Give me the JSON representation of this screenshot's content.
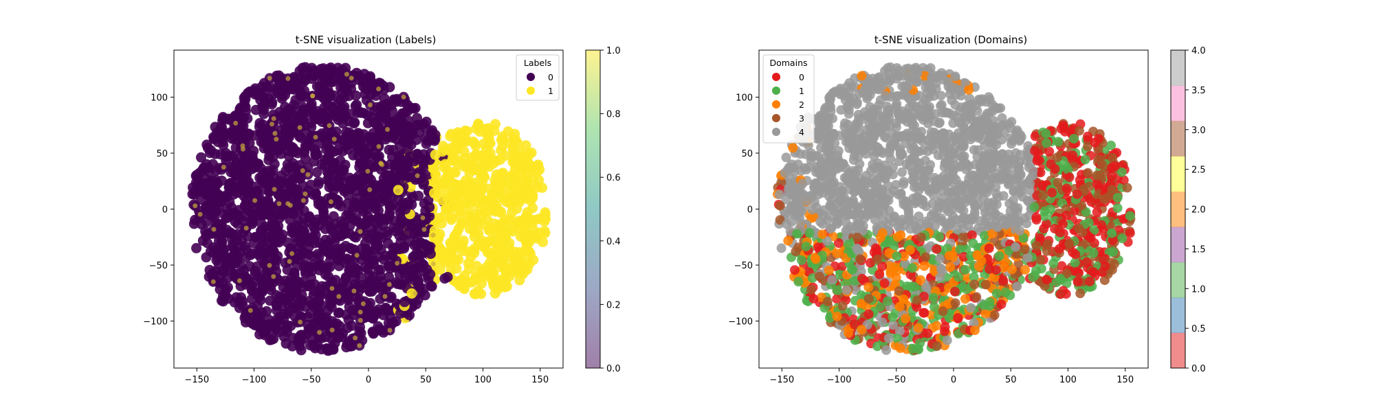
{
  "chart_data": [
    {
      "type": "scatter",
      "title": "t-SNE visualization (Labels)",
      "xlabel": "",
      "ylabel": "",
      "xlim": [
        -170,
        170
      ],
      "ylim": [
        -142,
        142
      ],
      "xticks": [
        -150,
        -100,
        -50,
        0,
        50,
        100,
        150
      ],
      "yticks": [
        -100,
        -50,
        0,
        50,
        100
      ],
      "legend": {
        "title": "Labels",
        "placement": "top-right",
        "entries": [
          {
            "label": "0",
            "color": "#440154"
          },
          {
            "label": "1",
            "color": "#fde725"
          }
        ]
      },
      "colorbar": {
        "colormap": "viridis",
        "alpha": 0.5,
        "range": [
          0.0,
          1.0
        ],
        "ticks": [
          "0.0",
          "0.2",
          "0.4",
          "0.6",
          "0.8",
          "1.0"
        ]
      },
      "series": [
        {
          "name": "0",
          "color": "#440154",
          "region": {
            "cx": -62,
            "cy": 0,
            "rx": 92,
            "ry": 125
          }
        },
        {
          "name": "1",
          "color": "#fde725",
          "region": {
            "cx": 100,
            "cy": 0,
            "rx": 55,
            "ry": 75
          }
        }
      ]
    },
    {
      "type": "scatter",
      "title": "t-SNE visualization (Domains)",
      "xlabel": "",
      "ylabel": "",
      "xlim": [
        -170,
        170
      ],
      "ylim": [
        -142,
        142
      ],
      "xticks": [
        -150,
        -100,
        -50,
        0,
        50,
        100,
        150
      ],
      "yticks": [
        -100,
        -50,
        0,
        50,
        100
      ],
      "legend": {
        "title": "Domains",
        "placement": "top-left",
        "entries": [
          {
            "label": "0",
            "color": "#e41a1c"
          },
          {
            "label": "1",
            "color": "#4daf4a"
          },
          {
            "label": "2",
            "color": "#ff7f00"
          },
          {
            "label": "3",
            "color": "#a65628"
          },
          {
            "label": "4",
            "color": "#999999"
          }
        ]
      },
      "colorbar": {
        "colormap": "Set1",
        "alpha": 0.5,
        "range": [
          0.0,
          4.0
        ],
        "ticks": [
          "0.0",
          "0.5",
          "1.0",
          "1.5",
          "2.0",
          "2.5",
          "3.0",
          "3.5",
          "4.0"
        ],
        "bands": [
          "#e41a1c",
          "#377eb8",
          "#4daf4a",
          "#984ea3",
          "#ff7f00",
          "#ffff33",
          "#a65628",
          "#f781bf",
          "#999999"
        ]
      },
      "series": [
        {
          "name": "4",
          "color": "#999999",
          "region": "upper-left and center"
        },
        {
          "name": "0",
          "color": "#e41a1c",
          "region": "right and lower"
        },
        {
          "name": "1",
          "color": "#4daf4a",
          "region": "right and lower"
        },
        {
          "name": "2",
          "color": "#ff7f00",
          "region": "lower-left and rim"
        },
        {
          "name": "3",
          "color": "#a65628",
          "region": "right"
        }
      ]
    }
  ]
}
